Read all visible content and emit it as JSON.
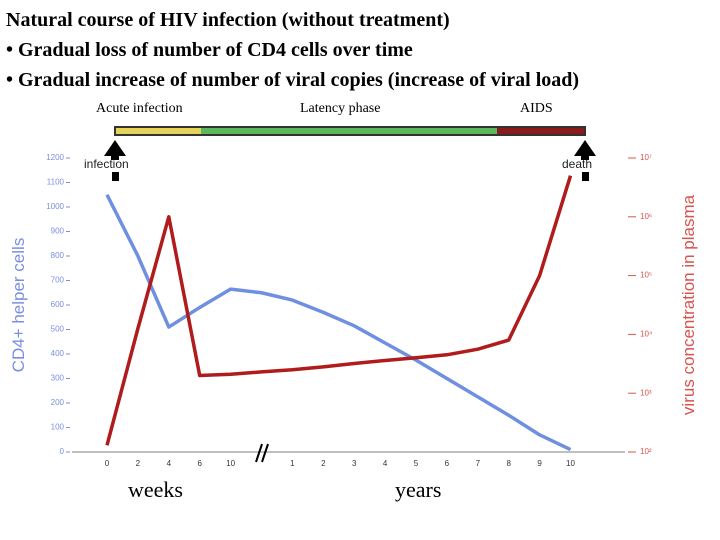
{
  "chart_data": {
    "type": "line",
    "title": "Natural course of HIV infection (without treatment)",
    "subtitle": [
      "• Gradual loss of number of CD4 cells over time",
      "• Gradual increase of number of viral copies (increase of viral load)"
    ],
    "annotations": [
      "Acute infection",
      "Latency phase",
      "AIDS",
      "infection",
      "death",
      "weeks",
      "years"
    ],
    "ylabel": "CD4+ helper cells",
    "y2label": "virus concentration in plasma",
    "categories": [
      "0",
      "2",
      "4",
      "6",
      "10",
      null,
      "1",
      "2",
      "3",
      "4",
      "5",
      "6",
      "7",
      "8",
      "9",
      "10"
    ],
    "series": [
      {
        "name": "CD4+ helper cells",
        "color": "#6f8fe0",
        "values": [
          1050,
          800,
          510,
          590,
          665,
          650,
          620,
          570,
          515,
          445,
          375,
          300,
          225,
          150,
          70,
          10
        ]
      },
      {
        "name": "virus concentration in plasma",
        "color": "#b01c1c",
        "axis": "y2",
        "values": [
          130,
          12600,
          1000000,
          2000,
          2100,
          2300,
          2500,
          2800,
          3200,
          3600,
          4000,
          4500,
          5600,
          8000,
          100000,
          5000000
        ]
      }
    ],
    "ylim": [
      0,
      1200
    ],
    "yticks": [
      0,
      100,
      200,
      300,
      400,
      500,
      600,
      700,
      800,
      900,
      1000,
      1100,
      1200
    ],
    "y2lim": [
      100,
      10000000
    ],
    "y2scale": "log",
    "y2ticks": [
      {
        "value": 100,
        "label": "10²"
      },
      {
        "value": 1000,
        "label": "10³"
      },
      {
        "value": 10000,
        "label": "10⁴"
      },
      {
        "value": 100000,
        "label": "10⁵"
      },
      {
        "value": 1000000,
        "label": "10⁶"
      },
      {
        "value": 10000000,
        "label": "10⁷"
      }
    ]
  }
}
